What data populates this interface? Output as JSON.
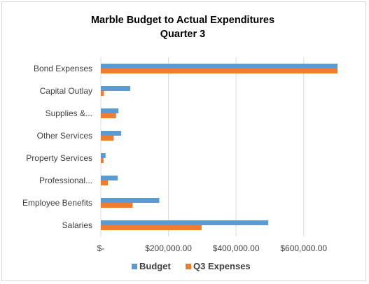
{
  "chart_data": {
    "type": "bar",
    "orientation": "horizontal",
    "title_lines": [
      "Marble Budget to Actual Expenditures",
      "Quarter 3"
    ],
    "categories": [
      "Bond Expenses",
      "Capital Outlay",
      "Supplies &...",
      "Other Services",
      "Property Services",
      "Professional...",
      "Employee Benefits",
      "Salaries"
    ],
    "series": [
      {
        "name": "Budget",
        "color": "#5B9BD5",
        "values": [
          700000,
          87000,
          52000,
          60000,
          14000,
          50000,
          173000,
          495000
        ]
      },
      {
        "name": "Q3 Expenses",
        "color": "#ED7D31",
        "values": [
          700000,
          9000,
          45000,
          38000,
          8000,
          21000,
          94000,
          298000
        ]
      }
    ],
    "x_ticks": [
      {
        "value": 0,
        "label": "$-"
      },
      {
        "value": 200000,
        "label": "$200,000.00"
      },
      {
        "value": 400000,
        "label": "$400,000.00"
      },
      {
        "value": 600000,
        "label": "$600,000.00"
      }
    ],
    "xlim": [
      0,
      700000
    ],
    "grid": true,
    "legend_position": "bottom"
  }
}
